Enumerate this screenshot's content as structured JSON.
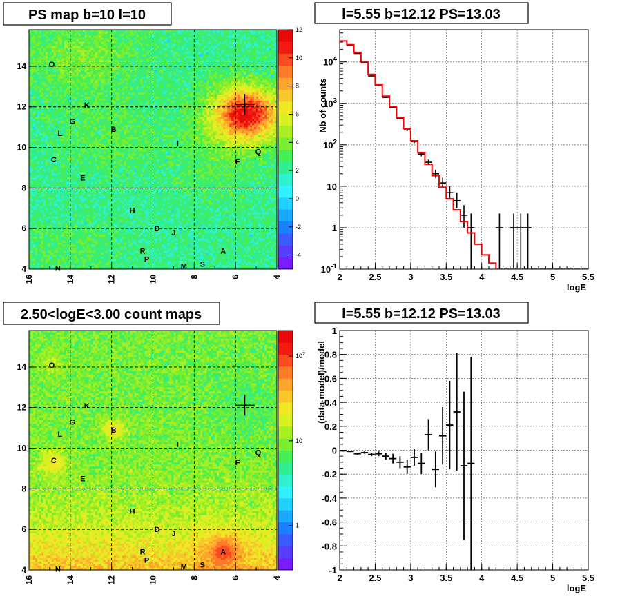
{
  "panels": [
    {
      "title": "PS map b=10 l=10"
    },
    {
      "title": "l=5.55 b=12.12 PS=13.03"
    },
    {
      "title": "2.50<logE<3.00 count maps"
    },
    {
      "title": "l=5.55 b=12.12 PS=13.03"
    }
  ],
  "chart_data": [
    {
      "type": "heatmap",
      "title": "PS map b=10 l=10",
      "x_ticks": [
        "16",
        "14",
        "12",
        "10",
        "8",
        "6",
        "4"
      ],
      "y_ticks": [
        "4",
        "6",
        "8",
        "10",
        "12",
        "14"
      ],
      "xlim": [
        16,
        4
      ],
      "ylim": [
        4,
        15.8
      ],
      "colorbar": {
        "scale": "linear",
        "range": [
          -5,
          12
        ],
        "ticks": [
          "-4",
          "-2",
          "0",
          "2",
          "4",
          "6",
          "8",
          "10",
          "12"
        ]
      },
      "sources": [
        {
          "label": "O",
          "l": 14.9,
          "b": 14.1
        },
        {
          "label": "K",
          "l": 13.2,
          "b": 12.1
        },
        {
          "label": "G",
          "l": 13.9,
          "b": 11.3
        },
        {
          "label": "L",
          "l": 14.5,
          "b": 10.7
        },
        {
          "label": "B",
          "l": 11.9,
          "b": 10.9
        },
        {
          "label": "I",
          "l": 8.8,
          "b": 10.2
        },
        {
          "label": "C",
          "l": 14.8,
          "b": 9.4
        },
        {
          "label": "E",
          "l": 13.4,
          "b": 8.5
        },
        {
          "label": "Q",
          "l": 4.9,
          "b": 9.8
        },
        {
          "label": "F",
          "l": 5.9,
          "b": 9.3
        },
        {
          "label": "H",
          "l": 11.0,
          "b": 6.9
        },
        {
          "label": "D",
          "l": 9.8,
          "b": 6.0
        },
        {
          "label": "J",
          "l": 9.0,
          "b": 5.8
        },
        {
          "label": "R",
          "l": 10.5,
          "b": 4.9
        },
        {
          "label": "P",
          "l": 10.3,
          "b": 4.5
        },
        {
          "label": "A",
          "l": 6.6,
          "b": 4.9
        },
        {
          "label": "N",
          "l": 14.6,
          "b": 4.05
        },
        {
          "label": "M",
          "l": 8.5,
          "b": 4.15
        },
        {
          "label": "S",
          "l": 7.6,
          "b": 4.25
        }
      ],
      "marker": {
        "l": 5.55,
        "b": 12.12
      }
    },
    {
      "type": "line",
      "title": "l=5.55 b=12.12 PS=13.03",
      "xlabel": "logE",
      "ylabel": "Nb of counts",
      "xlim": [
        2,
        5.5
      ],
      "ylim": [
        0.1,
        60000
      ],
      "yscale": "log",
      "x_ticks": [
        "2",
        "2.5",
        "3",
        "3.5",
        "4",
        "4.5",
        "5",
        "5.5"
      ],
      "y_ticks": [
        "10^-1",
        "1",
        "10",
        "10^2",
        "10^3",
        "10^4"
      ],
      "grid": true,
      "bin_edges": [
        2.0,
        2.1,
        2.2,
        2.3,
        2.4,
        2.5,
        2.6,
        2.7,
        2.8,
        2.9,
        3.0,
        3.1,
        3.2,
        3.3,
        3.4,
        3.5,
        3.6,
        3.7,
        3.8,
        3.9,
        4.0,
        4.1,
        4.2,
        4.3,
        4.4,
        4.5,
        4.6,
        4.7,
        4.8,
        4.9,
        5.0,
        5.1,
        5.2,
        5.3,
        5.4,
        5.5
      ],
      "series": [
        {
          "style": "step",
          "color": "#ff0000",
          "values": [
            32000,
            26000,
            17000,
            10000,
            5000,
            2800,
            1500,
            850,
            460,
            250,
            125,
            65,
            34,
            18,
            9.5,
            5.0,
            2.7,
            1.4,
            0.75,
            0.4,
            0.22,
            0.14,
            0.1,
            0.1,
            0.1,
            0.1,
            0.1,
            0.1,
            0.1,
            0.1,
            0.1,
            0.1,
            0.1,
            0.1,
            0.1
          ]
        },
        {
          "style": "errorbar",
          "color": "#000000",
          "x": [
            2.05,
            2.15,
            2.25,
            2.35,
            2.45,
            2.55,
            2.65,
            2.75,
            2.85,
            2.95,
            3.05,
            3.15,
            3.25,
            3.35,
            3.45,
            3.55,
            3.65,
            3.75,
            3.85,
            4.25,
            4.45,
            4.55,
            4.65
          ],
          "y": [
            32000,
            25000,
            16000,
            9500,
            4600,
            2700,
            1400,
            800,
            430,
            230,
            120,
            60,
            38,
            20,
            12,
            7,
            4.5,
            2,
            1,
            1,
            1,
            1,
            1
          ],
          "ylow": [
            31600,
            24700,
            15700,
            9300,
            4500,
            2600,
            1350,
            770,
            410,
            215,
            110,
            53,
            33,
            16,
            9,
            5,
            3,
            1,
            0.1,
            0.1,
            0.1,
            0.1,
            0.1
          ],
          "yhigh": [
            32400,
            25300,
            16300,
            9700,
            4700,
            2800,
            1450,
            830,
            450,
            245,
            130,
            68,
            44,
            25,
            16,
            10,
            7,
            3.5,
            2.2,
            2.2,
            2.2,
            2.2,
            2.2
          ]
        }
      ]
    },
    {
      "type": "heatmap",
      "title": "2.50<logE<3.00 count maps",
      "x_ticks": [
        "16",
        "14",
        "12",
        "10",
        "8",
        "6",
        "4"
      ],
      "y_ticks": [
        "4",
        "6",
        "8",
        "10",
        "12",
        "14"
      ],
      "xlim": [
        16,
        4
      ],
      "ylim": [
        4,
        15.8
      ],
      "colorbar": {
        "scale": "log",
        "range": [
          0.3,
          200
        ],
        "ticks": [
          "1",
          "10",
          "10^2"
        ]
      },
      "marker": {
        "l": 5.55,
        "b": 12.12
      }
    },
    {
      "type": "scatter",
      "title": "l=5.55 b=12.12 PS=13.03",
      "xlabel": "logE",
      "ylabel": "(data-model)/model",
      "xlim": [
        2,
        5.5
      ],
      "ylim": [
        -1,
        1
      ],
      "x_ticks": [
        "2",
        "2.5",
        "3",
        "3.5",
        "4",
        "4.5",
        "5",
        "5.5"
      ],
      "y_ticks": [
        "-1",
        "-0.8",
        "-0.6",
        "-0.4",
        "-0.2",
        "0",
        "0.2",
        "0.4",
        "0.6",
        "0.8",
        "1"
      ],
      "grid": true,
      "x": [
        2.05,
        2.15,
        2.25,
        2.35,
        2.45,
        2.55,
        2.65,
        2.75,
        2.85,
        2.95,
        3.05,
        3.15,
        3.25,
        3.35,
        3.45,
        3.55,
        3.65,
        3.75,
        3.85
      ],
      "y": [
        -0.005,
        -0.01,
        -0.03,
        -0.02,
        -0.035,
        -0.03,
        -0.05,
        -0.07,
        -0.1,
        -0.14,
        -0.06,
        -0.11,
        0.13,
        -0.16,
        0.12,
        0.21,
        0.32,
        -0.13,
        -0.11
      ],
      "err": [
        0.005,
        0.006,
        0.008,
        0.01,
        0.015,
        0.02,
        0.03,
        0.04,
        0.05,
        0.06,
        0.07,
        0.09,
        0.13,
        0.15,
        0.24,
        0.37,
        0.49,
        0.62,
        0.89
      ]
    }
  ]
}
